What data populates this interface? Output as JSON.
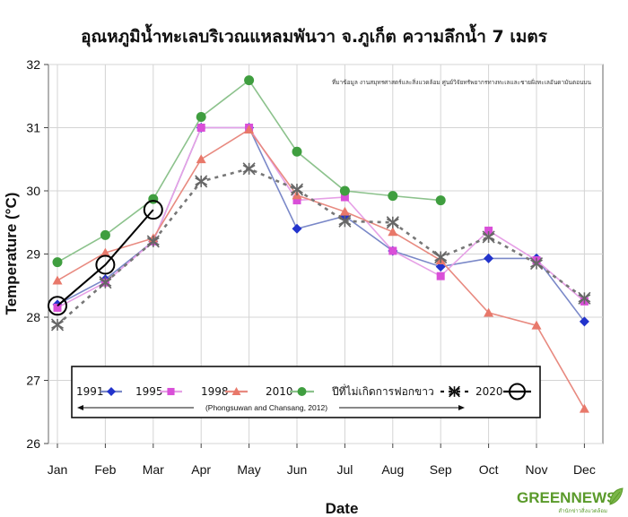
{
  "chart_data": {
    "type": "line",
    "title": "อุณหภูมิน้ำทะเลบริเวณแหลมพันวา จ.ภูเก็ต ความลึกน้ำ 7 เมตร",
    "xlabel": "Date",
    "ylabel": "Temperature (°C)",
    "ylim": [
      26,
      32
    ],
    "yticks": [
      "26",
      "27",
      "28",
      "29",
      "30",
      "31",
      "32"
    ],
    "categories": [
      "Jan",
      "Feb",
      "Mar",
      "Apr",
      "May",
      "Jun",
      "Jul",
      "Aug",
      "Sep",
      "Oct",
      "Nov",
      "Dec"
    ],
    "source_note": "ที่มาข้อมูล งานสมุทรศาสตร์และสิ่งแวดล้อม ศูนย์วิจัยทรัพยากรทางทะเลและชายฝั่งทะเลอันดามันตอนบน",
    "legend_citation": "(Phongsuwan and Chansang, 2012)",
    "grid": true,
    "series": [
      {
        "name": "1991",
        "color": "#2233cc",
        "line_color": "#7a88c8",
        "marker": "diamond",
        "dash": "solid",
        "x": [
          0,
          1,
          2,
          3,
          4,
          5,
          6,
          7,
          8,
          9,
          10,
          11
        ],
        "values": [
          28.2,
          28.6,
          29.2,
          31.0,
          31.0,
          29.4,
          29.6,
          29.05,
          28.8,
          28.93,
          28.93,
          27.93
        ]
      },
      {
        "name": "1995",
        "color": "#d94fd8",
        "line_color": "#e6a0e6",
        "marker": "square",
        "dash": "solid",
        "x": [
          0,
          1,
          2,
          3,
          4,
          5,
          6,
          7,
          8,
          9,
          10,
          11
        ],
        "values": [
          28.15,
          28.55,
          29.2,
          31.0,
          31.0,
          29.85,
          29.9,
          29.05,
          28.65,
          29.37,
          28.9,
          28.25
        ]
      },
      {
        "name": "1998",
        "color": "#e8786a",
        "line_color": "#e88a80",
        "marker": "triangle",
        "dash": "solid",
        "x": [
          0,
          1,
          2,
          3,
          4,
          5,
          6,
          7,
          8,
          9,
          10,
          11
        ],
        "values": [
          28.58,
          29.02,
          29.25,
          30.5,
          30.97,
          29.93,
          29.67,
          29.35,
          28.9,
          28.07,
          27.87,
          26.55
        ]
      },
      {
        "name": "2010",
        "color": "#3f9e3f",
        "line_color": "#8cc28c",
        "marker": "circle",
        "dash": "solid",
        "x": [
          0,
          1,
          2,
          3,
          4,
          5,
          6,
          7,
          8
        ],
        "values": [
          28.87,
          29.3,
          29.87,
          31.17,
          31.75,
          30.62,
          30.0,
          29.92,
          29.85
        ]
      },
      {
        "name": "ปีที่ไม่เกิดการฟอกขาว",
        "color": "#666666",
        "line_color": "#777777",
        "marker": "asterisk",
        "dash": "dashed",
        "x": [
          0,
          1,
          2,
          3,
          4,
          5,
          6,
          7,
          8,
          9,
          10,
          11
        ],
        "values": [
          27.88,
          28.55,
          29.2,
          30.15,
          30.35,
          30.02,
          29.52,
          29.5,
          28.95,
          29.27,
          28.85,
          28.3
        ]
      },
      {
        "name": "2020",
        "color": "#000000",
        "line_color": "#000000",
        "marker": "open-circle",
        "dash": "solid",
        "x": [
          0,
          1,
          2
        ],
        "values": [
          28.18,
          28.83,
          29.7
        ]
      }
    ]
  },
  "watermark": {
    "text": "GREENNEWS",
    "sub": "สำนักข่าวสิ่งแวดล้อม"
  }
}
